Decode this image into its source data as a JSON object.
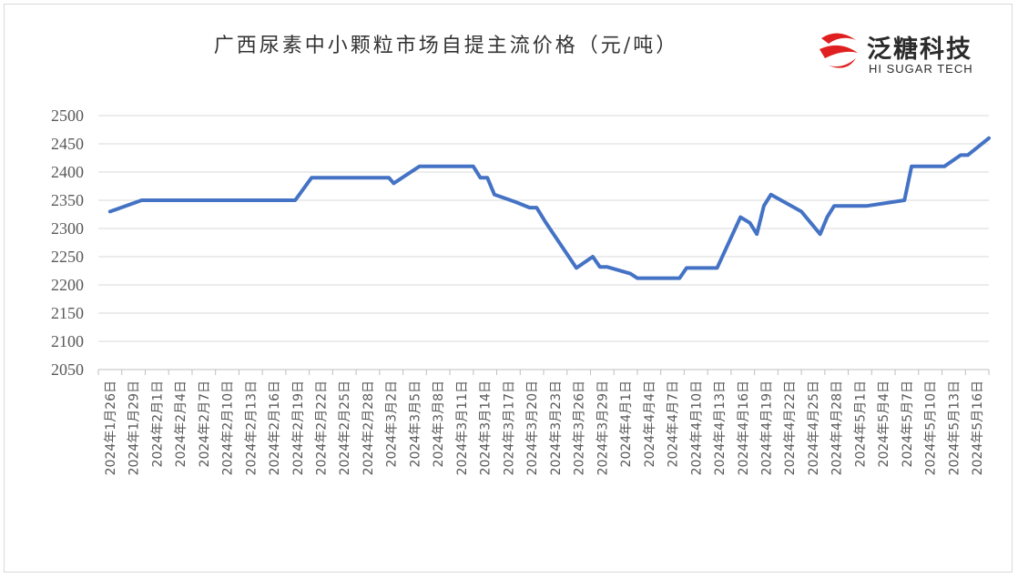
{
  "colors": {
    "line": "#4472C4",
    "grid": "#d9d9d9",
    "axis": "#bfbfbf",
    "brand_red": "#e02020"
  },
  "brand": {
    "name_cn": "泛糖科技",
    "name_en": "HI SUGAR TECH",
    "logo_icon": "red-swirl-logo-icon"
  },
  "chart_data": {
    "type": "line",
    "title": "广西尿素中小颗粒市场自提主流价格（元/吨）",
    "xlabel": "",
    "ylabel": "",
    "ylim": [
      2050,
      2500
    ],
    "yticks": [
      2500,
      2450,
      2400,
      2350,
      2300,
      2250,
      2200,
      2150,
      2100,
      2050
    ],
    "grid": true,
    "legend": "none",
    "categories": [
      "2024年1月26日",
      "2024年1月29日",
      "2024年2月1日",
      "2024年2月4日",
      "2024年2月7日",
      "2024年2月10日",
      "2024年2月13日",
      "2024年2月16日",
      "2024年2月19日",
      "2024年2月22日",
      "2024年2月25日",
      "2024年2月28日",
      "2024年3月2日",
      "2024年3月5日",
      "2024年3月8日",
      "2024年3月11日",
      "2024年3月14日",
      "2024年3月17日",
      "2024年3月20日",
      "2024年3月23日",
      "2024年3月26日",
      "2024年3月29日",
      "2024年4月1日",
      "2024年4月4日",
      "2024年4月7日",
      "2024年4月10日",
      "2024年4月13日",
      "2024年4月16日",
      "2024年4月19日",
      "2024年4月22日",
      "2024年4月25日",
      "2024年4月28日",
      "2024年5月1日",
      "2024年5月4日",
      "2024年5月7日",
      "2024年5月10日",
      "2024年5月13日",
      "2024年5月16日"
    ],
    "series": [
      {
        "points": [
          [
            0,
            2330
          ],
          [
            1.35,
            2350
          ],
          [
            3,
            2350
          ],
          [
            5,
            2350
          ],
          [
            7,
            2350
          ],
          [
            7.9,
            2350
          ],
          [
            8.6,
            2390
          ],
          [
            9.5,
            2390
          ],
          [
            11.5,
            2390
          ],
          [
            11.9,
            2390
          ],
          [
            12.1,
            2380
          ],
          [
            13.2,
            2410
          ],
          [
            15.5,
            2410
          ],
          [
            15.8,
            2390
          ],
          [
            16.1,
            2390
          ],
          [
            16.4,
            2360
          ],
          [
            17.3,
            2347
          ],
          [
            17.9,
            2337
          ],
          [
            18.2,
            2337
          ],
          [
            18.6,
            2310
          ],
          [
            19.9,
            2230
          ],
          [
            20.6,
            2250
          ],
          [
            20.9,
            2232
          ],
          [
            21.2,
            2232
          ],
          [
            22.2,
            2220
          ],
          [
            22.5,
            2212
          ],
          [
            24.3,
            2212
          ],
          [
            24.6,
            2230
          ],
          [
            25.9,
            2230
          ],
          [
            26.9,
            2320
          ],
          [
            27.3,
            2310
          ],
          [
            27.6,
            2290
          ],
          [
            27.9,
            2340
          ],
          [
            28.2,
            2360
          ],
          [
            29.5,
            2330
          ],
          [
            30.3,
            2290
          ],
          [
            30.6,
            2320
          ],
          [
            30.9,
            2340
          ],
          [
            31.9,
            2340
          ],
          [
            32.3,
            2340
          ],
          [
            33.9,
            2350
          ],
          [
            34.2,
            2410
          ],
          [
            35.6,
            2410
          ],
          [
            36.3,
            2430
          ],
          [
            36.6,
            2430
          ],
          [
            37.5,
            2460
          ]
        ]
      }
    ]
  }
}
